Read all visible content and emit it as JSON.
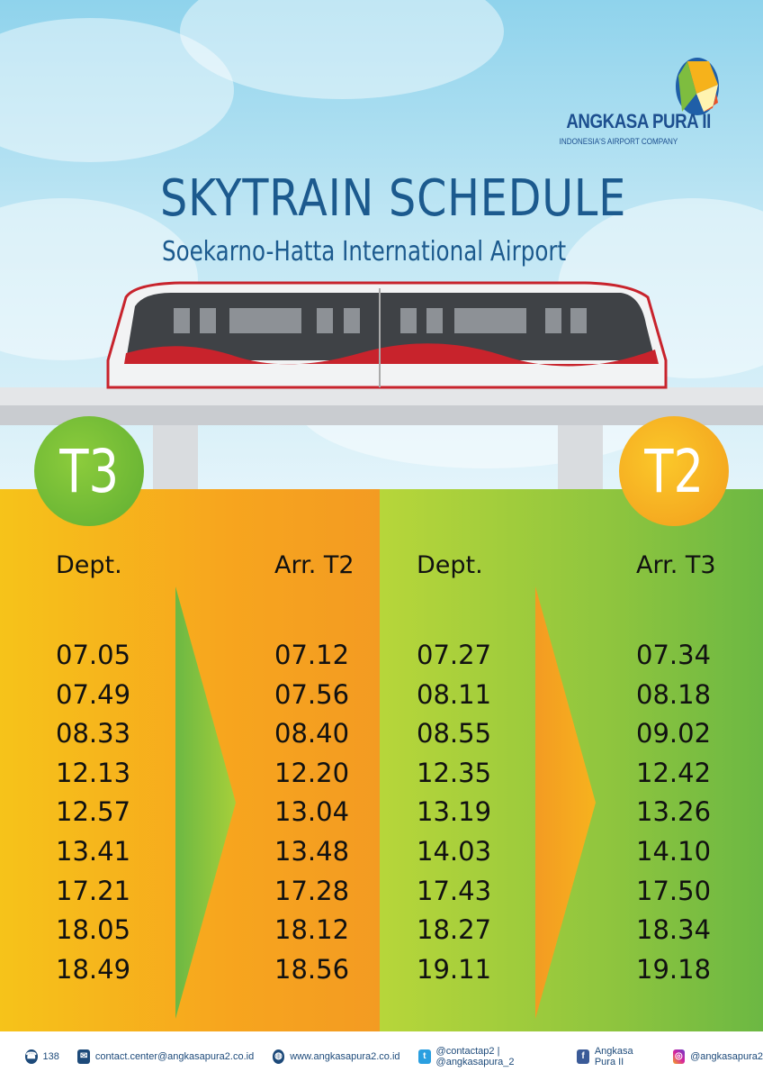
{
  "logo": {
    "name": "ANGKASA PURA II",
    "tagline": "INDONESIA'S AIRPORT COMPANY"
  },
  "title": "SKYTRAIN SCHEDULE",
  "subtitle": "Soekarno-Hatta International Airport",
  "terminals": {
    "left": "T3",
    "right": "T2"
  },
  "colors": {
    "orange": "#f7a51e",
    "green": "#8fc53e",
    "title_blue": "#1c5a8e"
  },
  "columns": [
    {
      "header": "Dept.",
      "times": [
        "07.05",
        "07.49",
        "08.33",
        "12.13",
        "12.57",
        "13.41",
        "17.21",
        "18.05",
        "18.49"
      ]
    },
    {
      "header": "Arr. T2",
      "times": [
        "07.12",
        "07.56",
        "08.40",
        "12.20",
        "13.04",
        "13.48",
        "17.28",
        "18.12",
        "18.56"
      ]
    },
    {
      "header": "Dept.",
      "times": [
        "07.27",
        "08.11",
        "08.55",
        "12.35",
        "13.19",
        "14.03",
        "17.43",
        "18.27",
        "19.11"
      ]
    },
    {
      "header": "Arr. T3",
      "times": [
        "07.34",
        "08.18",
        "09.02",
        "12.42",
        "13.26",
        "14.10",
        "17.50",
        "18.34",
        "19.18"
      ]
    }
  ],
  "footer": {
    "phone": "138",
    "email": "contact.center@angkasapura2.co.id",
    "website": "www.angkasapura2.co.id",
    "twitter": "@contactap2 | @angkasapura_2",
    "facebook": "Angkasa Pura II",
    "instagram": "@angkasapura2"
  }
}
